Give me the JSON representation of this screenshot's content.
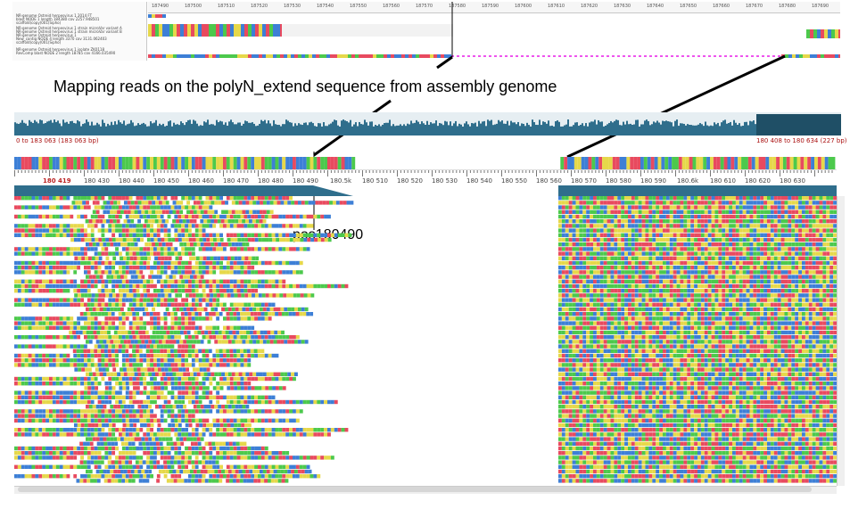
{
  "top_panel": {
    "sequence_names": [
      "NR-genome Ostreid herpesvirus 1 2014 FT",
      "blast NODE 1 length 184380 cov 2257.948501",
      "scaffold(copy)001(Sipho)",
      "NR-genome Ostreid herpesvirus 1 strain microVar variant A",
      "NR-genome Ostreid herpesvirus 1 strain microVar variant B",
      "NR-genome Ostreid herpesvirus 1",
      "New_contig NODE 4 length 3370 cov 3131.062403",
      "scaffold(copy)001(Sipho)",
      "NR-genome Ostreid herpesvirus 1 isolate ZK0118",
      "RevComp blast NODE 2 length 18785 cov 4166.035490"
    ],
    "ticks": [
      "187490",
      "187500",
      "187510",
      "187520",
      "187530",
      "187540",
      "187550",
      "187560",
      "187570",
      "187580",
      "187590",
      "187600",
      "187610",
      "187620",
      "187630",
      "187640",
      "187650",
      "187660",
      "187670",
      "187680",
      "187690"
    ]
  },
  "caption": "Mapping reads on the polyN_extend sequence from assembly genome",
  "position_label": "pos180490",
  "overview": {
    "range_left": "0 to 183 063 (183 063 bp)",
    "range_right": "180 408 to 180 634 (227 bp)"
  },
  "ruler": {
    "selected": "180 419",
    "labels": [
      "180 430",
      "180 440",
      "180 450",
      "180 460",
      "180 470",
      "180 480",
      "180 490",
      "180.5k",
      "180 510",
      "180 520",
      "180 530",
      "180 540",
      "180 550",
      "180 560",
      "180 570",
      "180 580",
      "180 590",
      "180.6k",
      "180 610",
      "180 620",
      "180 630"
    ]
  },
  "colors": {
    "A": "#e84a5f",
    "C": "#3d7fd6",
    "G": "#e6d84a",
    "T": "#4cc94c",
    "coverage": "#2f6e8c",
    "accent_red": "#aa1111"
  }
}
